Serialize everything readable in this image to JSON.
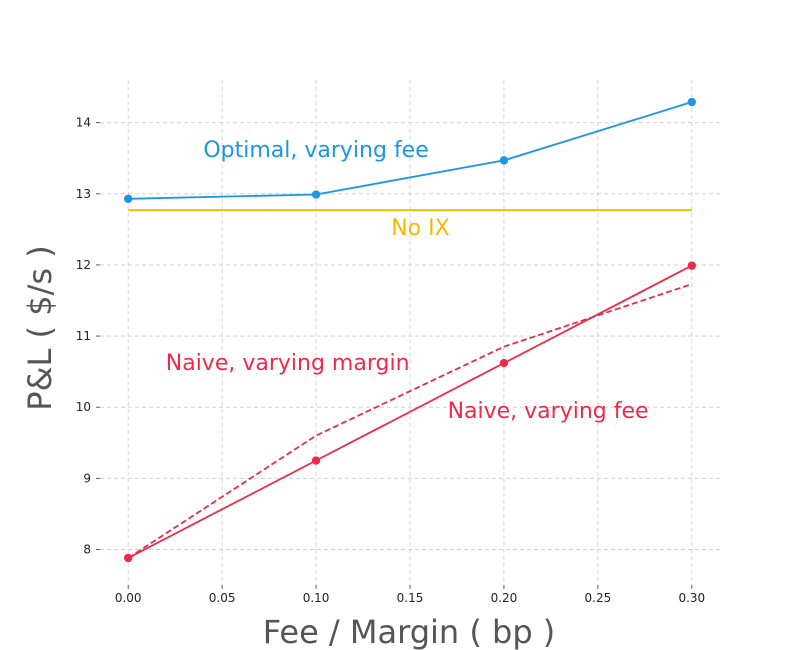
{
  "chart_data": {
    "type": "line",
    "title": "",
    "xlabel": "Fee / Margin ( bp )",
    "ylabel": "P&L ( $/s )",
    "xlim": [
      -0.015,
      0.315
    ],
    "ylim": [
      7.5,
      14.6
    ],
    "xticks": [
      0.0,
      0.05,
      0.1,
      0.15,
      0.2,
      0.25,
      0.3
    ],
    "xtick_labels": [
      "0.00",
      "0.05",
      "0.10",
      "0.15",
      "0.20",
      "0.25",
      "0.30"
    ],
    "yticks": [
      8,
      9,
      10,
      11,
      12,
      13,
      14
    ],
    "ytick_labels": [
      "8",
      "9",
      "10",
      "11",
      "12",
      "13",
      "14"
    ],
    "grid": true,
    "series": [
      {
        "name": "Optimal, varying fee",
        "color": "#1a96e6",
        "style": "solid",
        "markers": true,
        "x": [
          0.0,
          0.1,
          0.2,
          0.3
        ],
        "y": [
          12.93,
          12.99,
          13.47,
          14.29
        ]
      },
      {
        "name": "No IX",
        "color": "#f5b800",
        "style": "solid",
        "markers": false,
        "x": [
          0.0,
          0.3
        ],
        "y": [
          12.77,
          12.77
        ]
      },
      {
        "name": "Naive, varying fee",
        "color": "#ee2a4a",
        "style": "solid",
        "markers": true,
        "x": [
          0.0,
          0.1,
          0.2,
          0.3
        ],
        "y": [
          7.88,
          9.25,
          10.62,
          11.99
        ]
      },
      {
        "name": "Naive, varying margin",
        "color": "#ee2a4a",
        "style": "dashed",
        "markers": false,
        "x": [
          0.0,
          0.1,
          0.2,
          0.3
        ],
        "y": [
          7.88,
          9.6,
          10.85,
          11.73
        ]
      }
    ],
    "annotations": [
      {
        "text": "Optimal, varying fee",
        "color": "#1a96e6",
        "x": 0.04,
        "y": 13.52
      },
      {
        "text": "No IX",
        "color": "#f5b800",
        "x": 0.14,
        "y": 12.42
      },
      {
        "text": "Naive, varying margin",
        "color": "#ee2a4a",
        "x": 0.02,
        "y": 10.52
      },
      {
        "text": "Naive, varying fee",
        "color": "#ee2a4a",
        "x": 0.17,
        "y": 9.85
      }
    ]
  }
}
